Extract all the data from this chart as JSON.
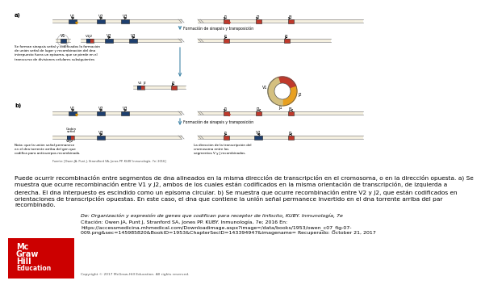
{
  "bg_color": "#ffffff",
  "blue": "#1a4f8a",
  "dark_blue": "#1e3f6e",
  "red": "#c0392b",
  "orange": "#e8a020",
  "tan": "#f0e6c8",
  "gray_line": "#aaaaaa",
  "caption_lines": [
    "Puede ocurrir recombinación entre segmentos de dna alineados en la misma dirección de transcripción en el cromosoma, o en la dirección opuesta. a) Se",
    "muestra que ocurre recombinación entre V1 y J2, ambos de los cuales están codificados en la misma orientación de transcripción, de izquierda a",
    "derecha. El dna interpuesto es escindido como un episoma circular. b) Se muestra que ocurre recombinación entre V2 y J2, que están codificados en",
    "orientaciones de transcripción opuestas. En este caso, el dna que contiene la unión señal permanece invertido en el dna torrente arriba del par",
    "recombinado."
  ],
  "source_line1": "De: Organización y expresión de genes que codifican para receptor de linfocito, KUBY. Inmunología, 7e",
  "source_line2": "Citación: Owen JA, Punt J, Stranford SA, Jones PP. KUBY. Inmunología, 7e; 2016 En:",
  "source_line3": "https://accessmedicina.mhmedical.com/Downloadimage.aspx?image=/data/books/1953/owen_c07_fig-07-",
  "source_line4": "009.png&sec=145985820&BookID=1953&ChapterSecID=143394947&imagename= Recuperado: October 21, 2017",
  "copyright": "Copyright © 2017 McGraw-Hill Education. All rights reserved."
}
